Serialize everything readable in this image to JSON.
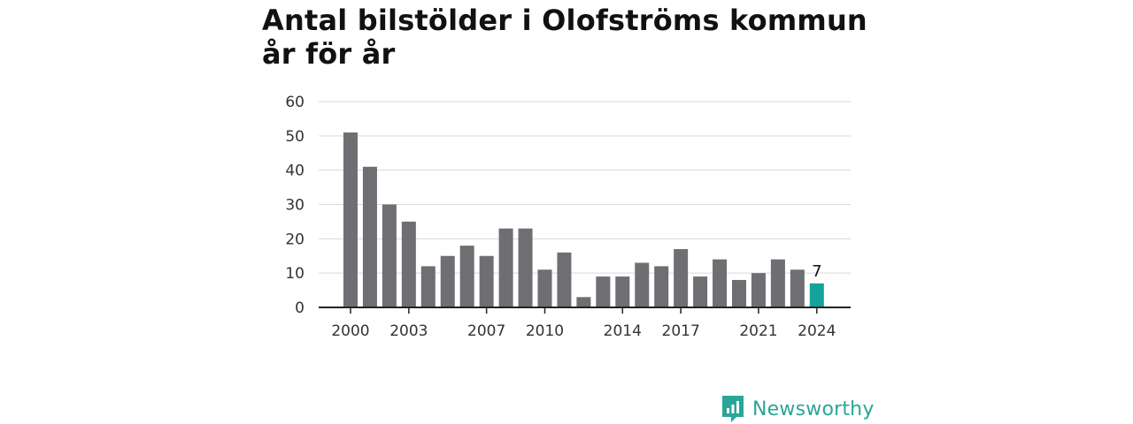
{
  "title_line1": "Antal bilstölder i Olofströms kommun",
  "title_line2": "år för år",
  "brand": {
    "name": "Newsworthy",
    "icon": "newsworthy-logo-icon",
    "color": "#2aa59a"
  },
  "colors": {
    "bar": "#6e6e73",
    "highlight": "#14a39a",
    "grid": "#d9d9d9",
    "axis": "#222222"
  },
  "chart_data": {
    "type": "bar",
    "title": "Antal bilstölder i Olofströms kommun år för år",
    "xlabel": "",
    "ylabel": "",
    "categories": [
      "2000",
      "2001",
      "2002",
      "2003",
      "2004",
      "2005",
      "2006",
      "2007",
      "2008",
      "2009",
      "2010",
      "2011",
      "2012",
      "2013",
      "2014",
      "2015",
      "2016",
      "2017",
      "2018",
      "2019",
      "2020",
      "2021",
      "2022",
      "2023",
      "2024"
    ],
    "values": [
      51,
      41,
      30,
      25,
      12,
      15,
      18,
      15,
      23,
      23,
      11,
      16,
      3,
      9,
      9,
      13,
      12,
      17,
      9,
      14,
      8,
      10,
      14,
      11,
      7
    ],
    "ylim": [
      0,
      60
    ],
    "yticks": [
      "0",
      "10",
      "20",
      "30",
      "40",
      "50",
      "60"
    ],
    "xtick_labels": [
      "2000",
      "2003",
      "2007",
      "2010",
      "2014",
      "2017",
      "2021",
      "2024"
    ],
    "highlight": {
      "category": "2024",
      "label": "7"
    },
    "grid": true
  }
}
